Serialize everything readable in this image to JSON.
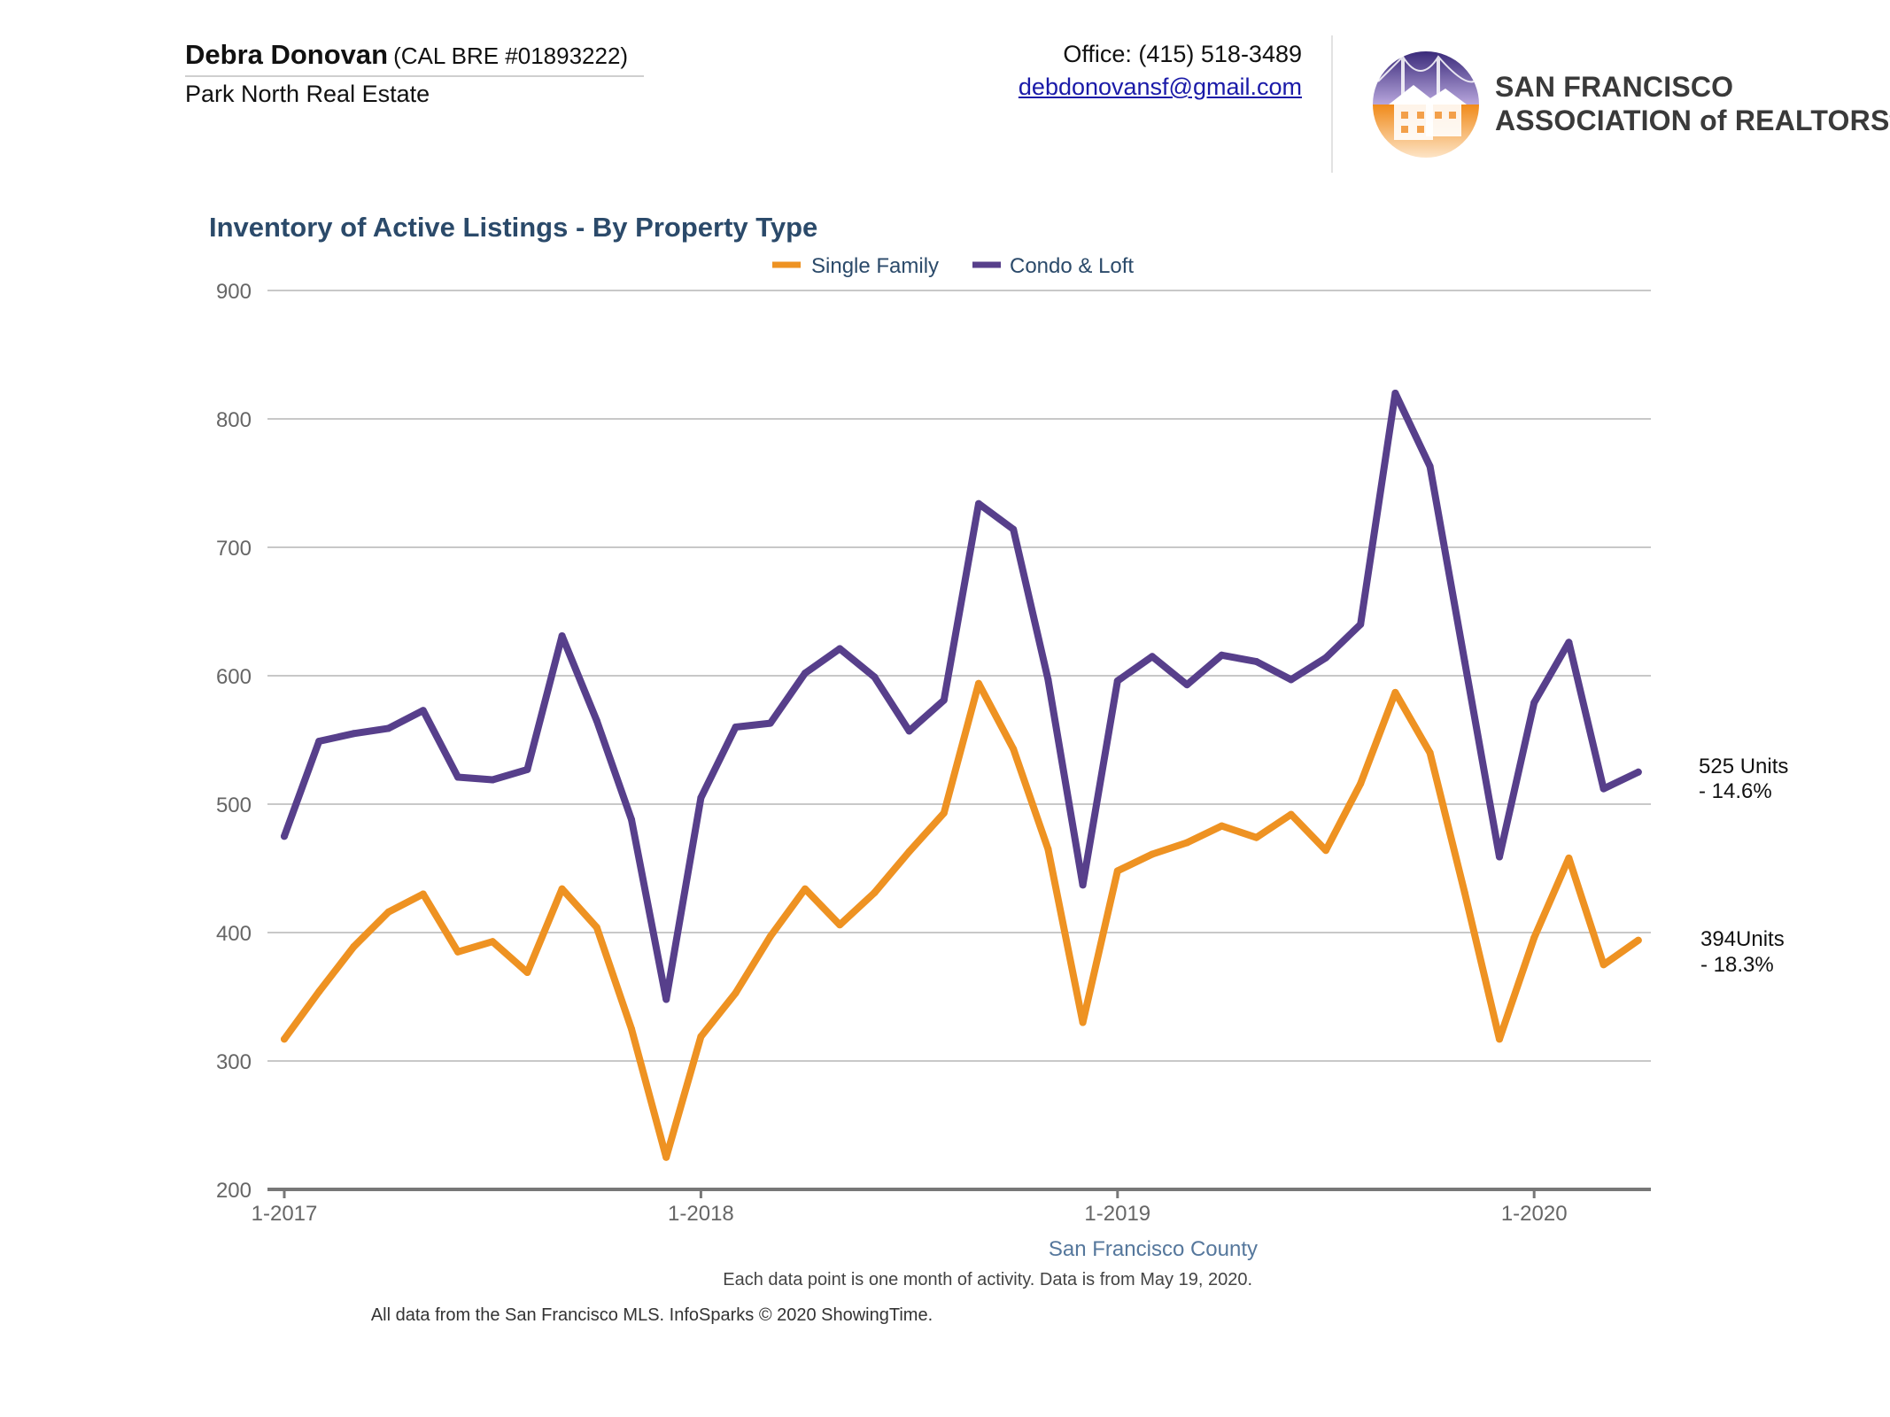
{
  "header": {
    "agent_name": "Debra Donovan",
    "agent_license": "(CAL BRE #01893222)",
    "brokerage": "Park North Real Estate",
    "office_phone": "Office: (415) 518-3489",
    "email": "debdonovansf@gmail.com",
    "logo_line1": "SAN FRANCISCO",
    "logo_line2": "ASSOCIATION of REALTORS",
    "logo_reg": "®"
  },
  "colors": {
    "single_family": "#ee9222",
    "condo_loft": "#573f8b",
    "grid": "#c8c8c8",
    "axis": "#777777",
    "tick_text": "#666666",
    "title": "#2b4a6a"
  },
  "chart_data": {
    "type": "line",
    "title": "Inventory of Active Listings - By Property Type",
    "xlabel": "",
    "ylabel": "",
    "ylim": [
      200,
      900
    ],
    "yticks": [
      200,
      300,
      400,
      500,
      600,
      700,
      800,
      900
    ],
    "grid": true,
    "legend_position": "top-center",
    "x_start": "2017-01",
    "x_ticks": [
      {
        "month_index": 0,
        "label": "1-2017"
      },
      {
        "month_index": 12,
        "label": "1-2018"
      },
      {
        "month_index": 24,
        "label": "1-2019"
      },
      {
        "month_index": 36,
        "label": "1-2020"
      }
    ],
    "x": [
      "2017-01",
      "2017-02",
      "2017-03",
      "2017-04",
      "2017-05",
      "2017-06",
      "2017-07",
      "2017-08",
      "2017-09",
      "2017-10",
      "2017-11",
      "2017-12",
      "2018-01",
      "2018-02",
      "2018-03",
      "2018-04",
      "2018-05",
      "2018-06",
      "2018-07",
      "2018-08",
      "2018-09",
      "2018-10",
      "2018-11",
      "2018-12",
      "2019-01",
      "2019-02",
      "2019-03",
      "2019-04",
      "2019-05",
      "2019-06",
      "2019-07",
      "2019-08",
      "2019-09",
      "2019-10",
      "2019-11",
      "2019-12",
      "2020-01",
      "2020-02",
      "2020-03",
      "2020-04"
    ],
    "series": [
      {
        "name": "Single Family",
        "color": "#ee9222",
        "values": [
          317,
          354,
          389,
          416,
          430,
          385,
          393,
          369,
          434,
          404,
          325,
          225,
          319,
          353,
          397,
          434,
          406,
          431,
          463,
          493,
          594,
          543,
          465,
          330,
          448,
          461,
          470,
          483,
          474,
          492,
          464,
          516,
          587,
          540,
          431,
          317,
          396,
          458,
          375,
          394
        ]
      },
      {
        "name": "Condo & Loft",
        "color": "#573f8b",
        "values": [
          475,
          549,
          555,
          559,
          573,
          521,
          519,
          527,
          631,
          565,
          488,
          348,
          505,
          560,
          563,
          602,
          621,
          599,
          557,
          581,
          734,
          714,
          597,
          437,
          596,
          615,
          593,
          616,
          611,
          597,
          614,
          640,
          820,
          763,
          611,
          459,
          579,
          626,
          512,
          525
        ]
      }
    ],
    "annotations": {
      "condo_units": "525 Units",
      "condo_change": "- 14.6%",
      "sf_units": "394Units",
      "sf_change": "- 18.3%"
    },
    "region": "San Francisco County"
  },
  "footer": {
    "note": "Each data point is one month of activity. Data is from May 19, 2020.",
    "source": "All data from the San Francisco MLS. InfoSparks © 2020 ShowingTime."
  }
}
